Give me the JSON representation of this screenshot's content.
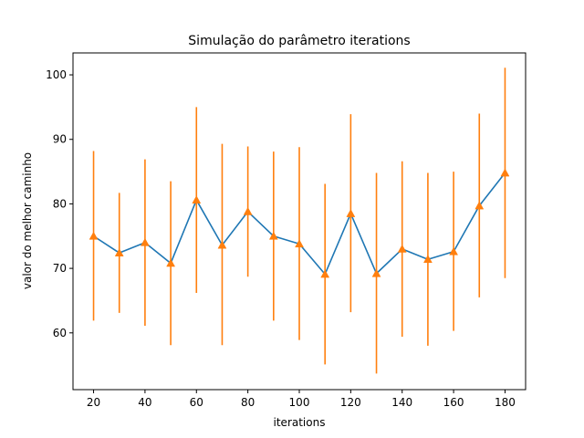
{
  "chart_data": {
    "type": "line",
    "title": "Simulação do parâmetro iterations",
    "xlabel": "iterations",
    "ylabel": "valor do melhor caminho",
    "xlim": [
      12,
      188
    ],
    "ylim": [
      51.2,
      103.4
    ],
    "xticks": [
      20,
      40,
      60,
      80,
      100,
      120,
      140,
      160,
      180
    ],
    "yticks": [
      60,
      70,
      80,
      90,
      100
    ],
    "grid": false,
    "series": [
      {
        "color": "#1f77b4",
        "x": [
          20,
          30,
          40,
          50,
          60,
          70,
          80,
          90,
          100,
          110,
          120,
          130,
          140,
          150,
          160,
          170,
          180
        ],
        "y": [
          75.0,
          72.4,
          74.0,
          70.8,
          80.6,
          73.6,
          78.8,
          75.0,
          73.8,
          69.1,
          78.5,
          69.2,
          73.0,
          71.4,
          72.6,
          79.7,
          84.8
        ]
      },
      {
        "color": "#ff7f0e",
        "marker": "triangle-up",
        "x": [
          20,
          30,
          40,
          50,
          60,
          70,
          80,
          90,
          100,
          110,
          120,
          130,
          140,
          150,
          160,
          170,
          180
        ],
        "y": [
          75.0,
          72.4,
          74.0,
          70.8,
          80.6,
          73.6,
          78.8,
          75.0,
          73.8,
          69.1,
          78.5,
          69.2,
          73.0,
          71.4,
          72.6,
          79.7,
          84.8
        ],
        "error_low": [
          61.9,
          63.1,
          61.1,
          58.1,
          66.2,
          58.1,
          68.7,
          61.9,
          58.9,
          55.1,
          63.2,
          53.7,
          59.4,
          58.0,
          60.3,
          65.5,
          68.5
        ],
        "error_high": [
          88.2,
          81.7,
          86.9,
          83.5,
          95.0,
          89.3,
          88.9,
          88.1,
          88.8,
          83.1,
          93.9,
          84.8,
          86.6,
          84.8,
          85.0,
          94.0,
          101.1
        ]
      }
    ]
  }
}
